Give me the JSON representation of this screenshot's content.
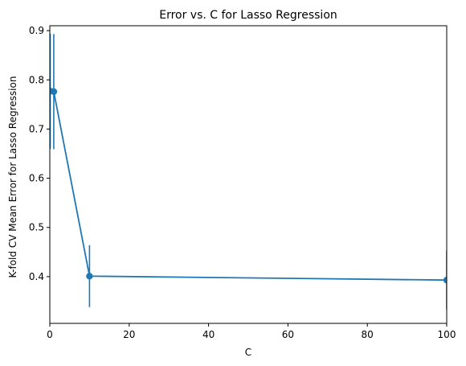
{
  "chart_data": {
    "type": "line",
    "title": "Error vs. C for Lasso Regression",
    "xlabel": "C",
    "ylabel": "K-fold CV Mean Error for Lasso Regression",
    "xlim": [
      0,
      100
    ],
    "ylim": [
      0.305,
      0.91
    ],
    "xticks": [
      0,
      20,
      40,
      60,
      80,
      100
    ],
    "xtick_labels": [
      "0",
      "20",
      "40",
      "60",
      "80",
      "100"
    ],
    "yticks": [
      0.4,
      0.5,
      0.6,
      0.7,
      0.8,
      0.9
    ],
    "ytick_labels": [
      "0.4",
      "0.5",
      "0.6",
      "0.7",
      "0.8",
      "0.9"
    ],
    "grid": false,
    "series": [
      {
        "color": "#1f77b4",
        "points": [
          {
            "x": 0.1,
            "y": 0.777,
            "yerr": 0.117
          },
          {
            "x": 1,
            "y": 0.776,
            "yerr": 0.117
          },
          {
            "x": 10,
            "y": 0.401,
            "yerr": 0.063
          },
          {
            "x": 100,
            "y": 0.393,
            "yerr": 0.06
          }
        ]
      }
    ]
  }
}
